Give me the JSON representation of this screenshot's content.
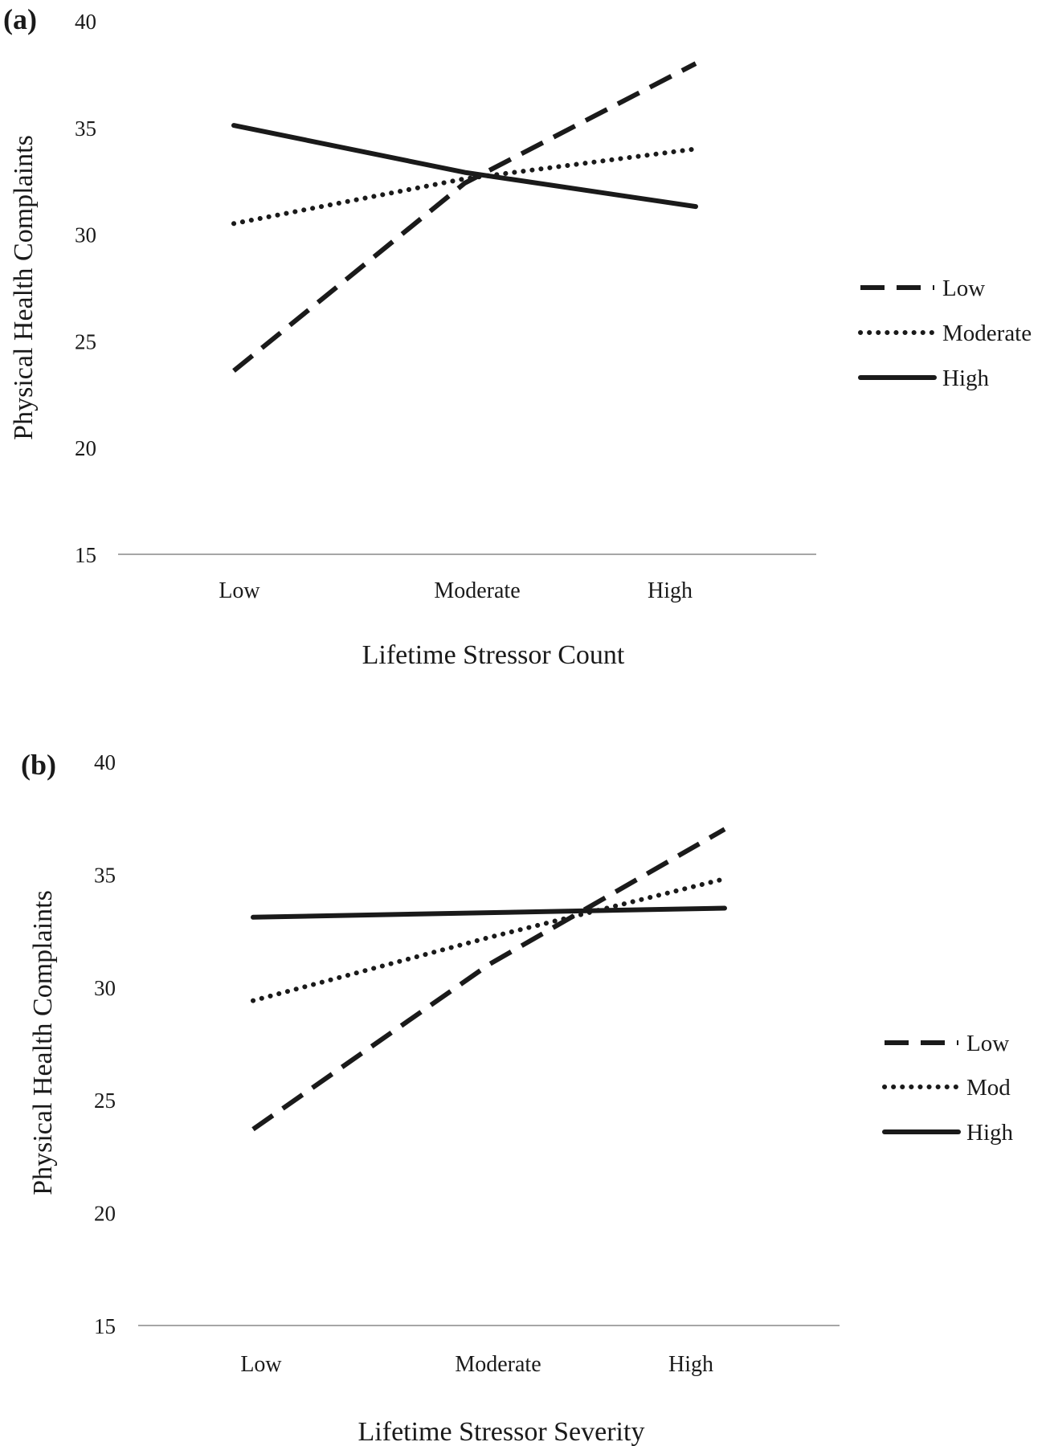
{
  "chart_data": [
    {
      "type": "line",
      "panel_label": "(a)",
      "categories": [
        "Low",
        "Moderate",
        "High"
      ],
      "xlabel": "Lifetime Stressor Count",
      "ylabel": "Physical Health Complaints",
      "ylim": [
        15,
        40
      ],
      "yticks": [
        "15",
        "20",
        "25",
        "30",
        "35",
        "40"
      ],
      "grid": false,
      "legend_position": "right",
      "series": [
        {
          "name": "Low",
          "style": "dashed",
          "values": [
            23.6,
            32.4,
            38.0
          ]
        },
        {
          "name": "Moderate",
          "style": "dotted",
          "values": [
            30.5,
            32.6,
            34.0
          ]
        },
        {
          "name": "High",
          "style": "solid",
          "values": [
            35.1,
            32.9,
            31.3
          ]
        }
      ]
    },
    {
      "type": "line",
      "panel_label": "(b)",
      "categories": [
        "Low",
        "Moderate",
        "High"
      ],
      "xlabel": "Lifetime Stressor Severity",
      "ylabel": "Physical Health Complaints",
      "ylim": [
        15,
        40
      ],
      "yticks": [
        "15",
        "20",
        "25",
        "30",
        "35",
        "40"
      ],
      "grid": false,
      "legend_position": "right",
      "series": [
        {
          "name": "Low",
          "style": "dashed",
          "values": [
            23.7,
            31.0,
            37.0
          ]
        },
        {
          "name": "Mod",
          "style": "dotted",
          "values": [
            29.4,
            32.2,
            34.8
          ]
        },
        {
          "name": "High",
          "style": "solid",
          "values": [
            33.1,
            33.3,
            33.5
          ]
        }
      ]
    }
  ],
  "colors": {
    "line": "#1a1a1a",
    "axis": "#a6a6a6"
  }
}
